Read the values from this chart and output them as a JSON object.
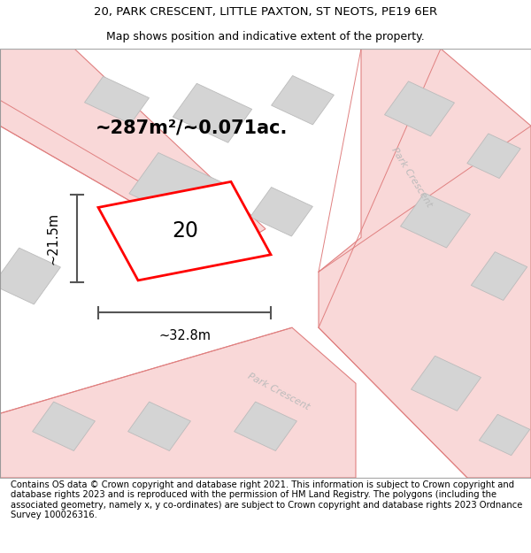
{
  "title_line1": "20, PARK CRESCENT, LITTLE PAXTON, ST NEOTS, PE19 6ER",
  "title_line2": "Map shows position and indicative extent of the property.",
  "footer_text": "Contains OS data © Crown copyright and database right 2021. This information is subject to Crown copyright and database rights 2023 and is reproduced with the permission of HM Land Registry. The polygons (including the associated geometry, namely x, y co-ordinates) are subject to Crown copyright and database rights 2023 Ordnance Survey 100026316.",
  "area_label": "~287m²/~0.071ac.",
  "house_number": "20",
  "width_label": "~32.8m",
  "height_label": "~21.5m",
  "map_bg": "#f2f2f2",
  "road_fill_color": "#f9d8d8",
  "road_line_color": "#e08080",
  "building_color": "#d4d4d4",
  "building_edge_color": "#bbbbbb",
  "highlight_color": "#ff0000",
  "dimension_color": "#555555",
  "road_label_color": "#bbbbbb",
  "title_fontsize": 9.5,
  "footer_fontsize": 7.2,
  "area_fontsize": 15,
  "number_fontsize": 17,
  "dim_fontsize": 10.5
}
